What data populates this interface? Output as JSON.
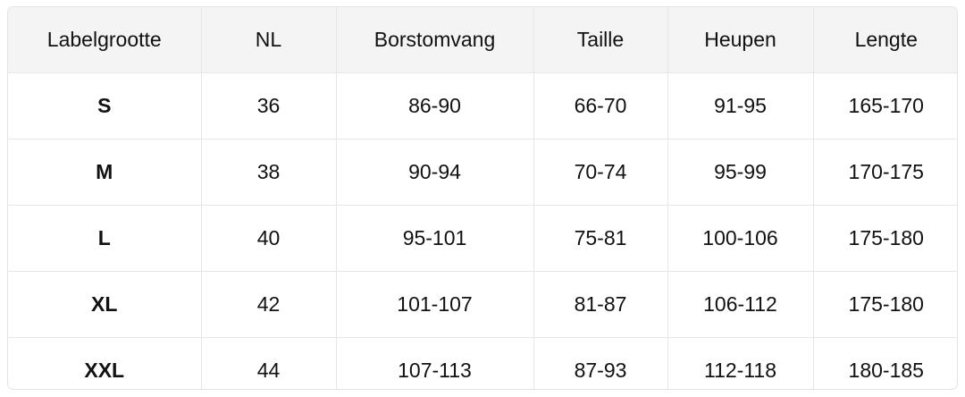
{
  "table": {
    "headers": [
      "Labelgrootte",
      "NL",
      "Borstomvang",
      "Taille",
      "Heupen",
      "Lengte"
    ],
    "rows": [
      [
        "S",
        "36",
        "86-90",
        "66-70",
        "91-95",
        "165-170"
      ],
      [
        "M",
        "38",
        "90-94",
        "70-74",
        "95-99",
        "170-175"
      ],
      [
        "L",
        "40",
        "95-101",
        "75-81",
        "100-106",
        "175-180"
      ],
      [
        "XL",
        "42",
        "101-107",
        "81-87",
        "106-112",
        "175-180"
      ],
      [
        "XXL",
        "44",
        "107-113",
        "87-93",
        "112-118",
        "180-185"
      ]
    ]
  }
}
